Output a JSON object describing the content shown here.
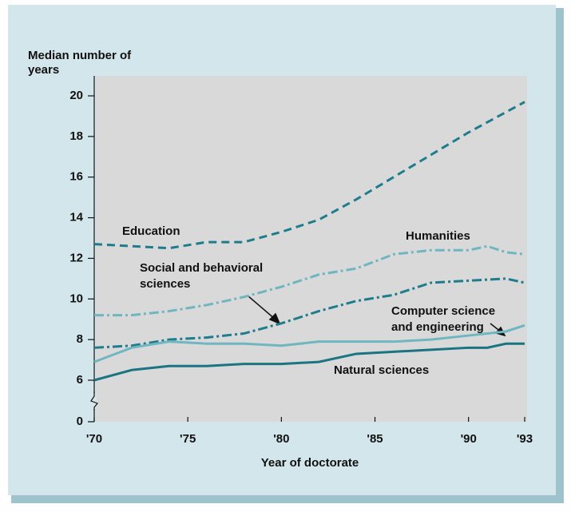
{
  "chart_data": {
    "type": "line",
    "y_title": "Median number of years",
    "x_title": "Year of doctorate",
    "xlim": [
      1970,
      1993
    ],
    "xticks": [
      {
        "value": 1970,
        "label": "'70"
      },
      {
        "value": 1975,
        "label": "'75"
      },
      {
        "value": 1980,
        "label": "'80"
      },
      {
        "value": 1985,
        "label": "'85"
      },
      {
        "value": 1990,
        "label": "'90"
      },
      {
        "value": 1993,
        "label": "'93"
      }
    ],
    "ylim": [
      0,
      20
    ],
    "yticks": [
      0,
      6,
      8,
      10,
      12,
      14,
      16,
      18,
      20
    ],
    "axis_break": true,
    "series": [
      {
        "name": "Education",
        "color": "#1f7c8c",
        "dash": "dashed",
        "x": [
          1970,
          1972,
          1974,
          1976,
          1978,
          1980,
          1982,
          1984,
          1986,
          1988,
          1990,
          1992,
          1993
        ],
        "values": [
          12.7,
          12.6,
          12.5,
          12.8,
          12.8,
          13.3,
          13.9,
          14.9,
          16.0,
          17.1,
          18.2,
          19.2,
          19.7
        ]
      },
      {
        "name": "Humanities",
        "color": "#6fb6c1",
        "dash": "dashdot",
        "x": [
          1970,
          1972,
          1974,
          1976,
          1978,
          1980,
          1982,
          1984,
          1986,
          1988,
          1990,
          1991,
          1992,
          1993
        ],
        "values": [
          9.2,
          9.2,
          9.4,
          9.7,
          10.1,
          10.6,
          11.2,
          11.5,
          12.2,
          12.4,
          12.4,
          12.6,
          12.3,
          12.2
        ]
      },
      {
        "name": "Social and behavioral sciences",
        "color": "#1f7c8c",
        "dash": "dashdot",
        "x": [
          1970,
          1972,
          1974,
          1976,
          1978,
          1980,
          1982,
          1984,
          1986,
          1988,
          1990,
          1992,
          1993
        ],
        "values": [
          7.6,
          7.7,
          8.0,
          8.1,
          8.3,
          8.8,
          9.4,
          9.9,
          10.2,
          10.8,
          10.9,
          11.0,
          10.8
        ]
      },
      {
        "name": "Computer science and engineering",
        "color": "#6fb6c1",
        "dash": "solid",
        "x": [
          1970,
          1972,
          1974,
          1976,
          1978,
          1980,
          1982,
          1984,
          1986,
          1988,
          1990,
          1992,
          1993
        ],
        "values": [
          6.9,
          7.6,
          7.9,
          7.8,
          7.8,
          7.7,
          7.9,
          7.9,
          7.9,
          8.0,
          8.2,
          8.4,
          8.7
        ]
      },
      {
        "name": "Natural sciences",
        "color": "#1a7482",
        "dash": "solid",
        "x": [
          1970,
          1972,
          1974,
          1976,
          1978,
          1980,
          1982,
          1984,
          1986,
          1988,
          1990,
          1991,
          1992,
          1993
        ],
        "values": [
          6.0,
          6.5,
          6.7,
          6.7,
          6.8,
          6.8,
          6.9,
          7.3,
          7.4,
          7.5,
          7.6,
          7.6,
          7.8,
          7.8
        ]
      }
    ]
  }
}
